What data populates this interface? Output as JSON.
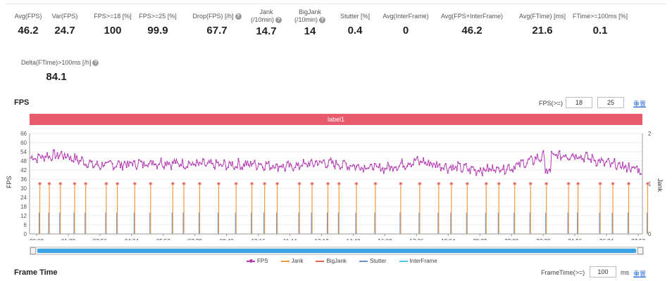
{
  "stats": [
    {
      "label": "Avg(FPS)",
      "value": "46.2"
    },
    {
      "label": "Var(FPS)",
      "value": "24.7"
    },
    {
      "label": "FPS>=18 [%]",
      "value": "100"
    },
    {
      "label": "FPS>=25 [%]",
      "value": "99.9"
    },
    {
      "label": "Drop(FPS) [/h]",
      "value": "67.7",
      "help": true
    },
    {
      "label": "Jank",
      "label2": "(/10min)",
      "value": "14.7",
      "help": true
    },
    {
      "label": "BigJank",
      "label2": "(/10min)",
      "value": "14",
      "help": true
    },
    {
      "label": "Stutter [%]",
      "value": "0.4"
    },
    {
      "label": "Avg(InterFrame)",
      "value": "0"
    },
    {
      "label": "Avg(FPS+InterFrame)",
      "value": "46.2"
    },
    {
      "label": "Avg(FTime) [ms]",
      "value": "21.6"
    },
    {
      "label": "FTime>=100ms [%]",
      "value": "0.1"
    },
    {
      "label": "Delta(FTime)>100ms [/h]",
      "value": "84.1",
      "help": true
    }
  ],
  "fps_section": {
    "title": "FPS",
    "threshold_label": "FPS(>=)",
    "threshold_low": "18",
    "threshold_high": "25",
    "reset_link": "重置",
    "label_bar": "label1"
  },
  "frame_section": {
    "title": "Frame Time",
    "threshold_label": "FrameTime(>=)",
    "threshold_value": "100",
    "unit": "ms",
    "reset_link": "重置"
  },
  "colors": {
    "fps": "#b33fb3",
    "jank": "#f09a3e",
    "bigjank": "#e0625a",
    "stutter": "#7090c8",
    "interframe": "#4fc3e8",
    "labelbar": "#e95b6c"
  },
  "chart_data": {
    "type": "line",
    "ylabel": "FPS",
    "y2label": "Jank",
    "ylim": [
      0,
      66
    ],
    "yticks": [
      0,
      6,
      12,
      18,
      24,
      30,
      36,
      42,
      48,
      54,
      60,
      66
    ],
    "y2lim": [
      0,
      2
    ],
    "y2ticks": [
      0,
      1,
      2
    ],
    "xticks": [
      "00:00",
      "01:28",
      "02:56",
      "04:24",
      "05:52",
      "07:20",
      "08:48",
      "10:16",
      "11:44",
      "13:12",
      "14:40",
      "16:08",
      "17:36",
      "19:04",
      "20:32",
      "22:00",
      "23:28",
      "24:56",
      "26:24",
      "27:52"
    ],
    "legend": [
      "FPS",
      "Jank",
      "BigJank",
      "Stutter",
      "InterFrame"
    ],
    "series": [
      {
        "name": "FPS",
        "shape_by_tick": [
          50,
          52,
          45,
          46,
          47,
          46,
          45,
          46,
          44,
          47,
          45,
          43,
          48,
          44,
          42,
          44,
          51,
          52,
          46,
          42
        ],
        "jitter_amplitude": 3
      },
      {
        "name": "Jank",
        "events_by_tick_fraction": [
          0.1,
          0.4,
          0.75,
          1.2,
          1.55,
          2.2,
          2.55,
          3.1,
          3.6,
          4.3,
          4.65,
          5.15,
          5.75,
          6.3,
          6.8,
          7.2,
          7.6,
          8.3,
          8.7,
          9.2,
          9.55,
          10.1,
          10.7,
          11.5,
          12.1,
          12.7,
          13.1,
          13.6,
          14.2,
          14.6,
          15.1,
          15.6,
          16.1,
          16.8,
          17.1,
          17.8,
          18.2,
          18.7,
          19.3
        ],
        "value": 1
      }
    ]
  }
}
